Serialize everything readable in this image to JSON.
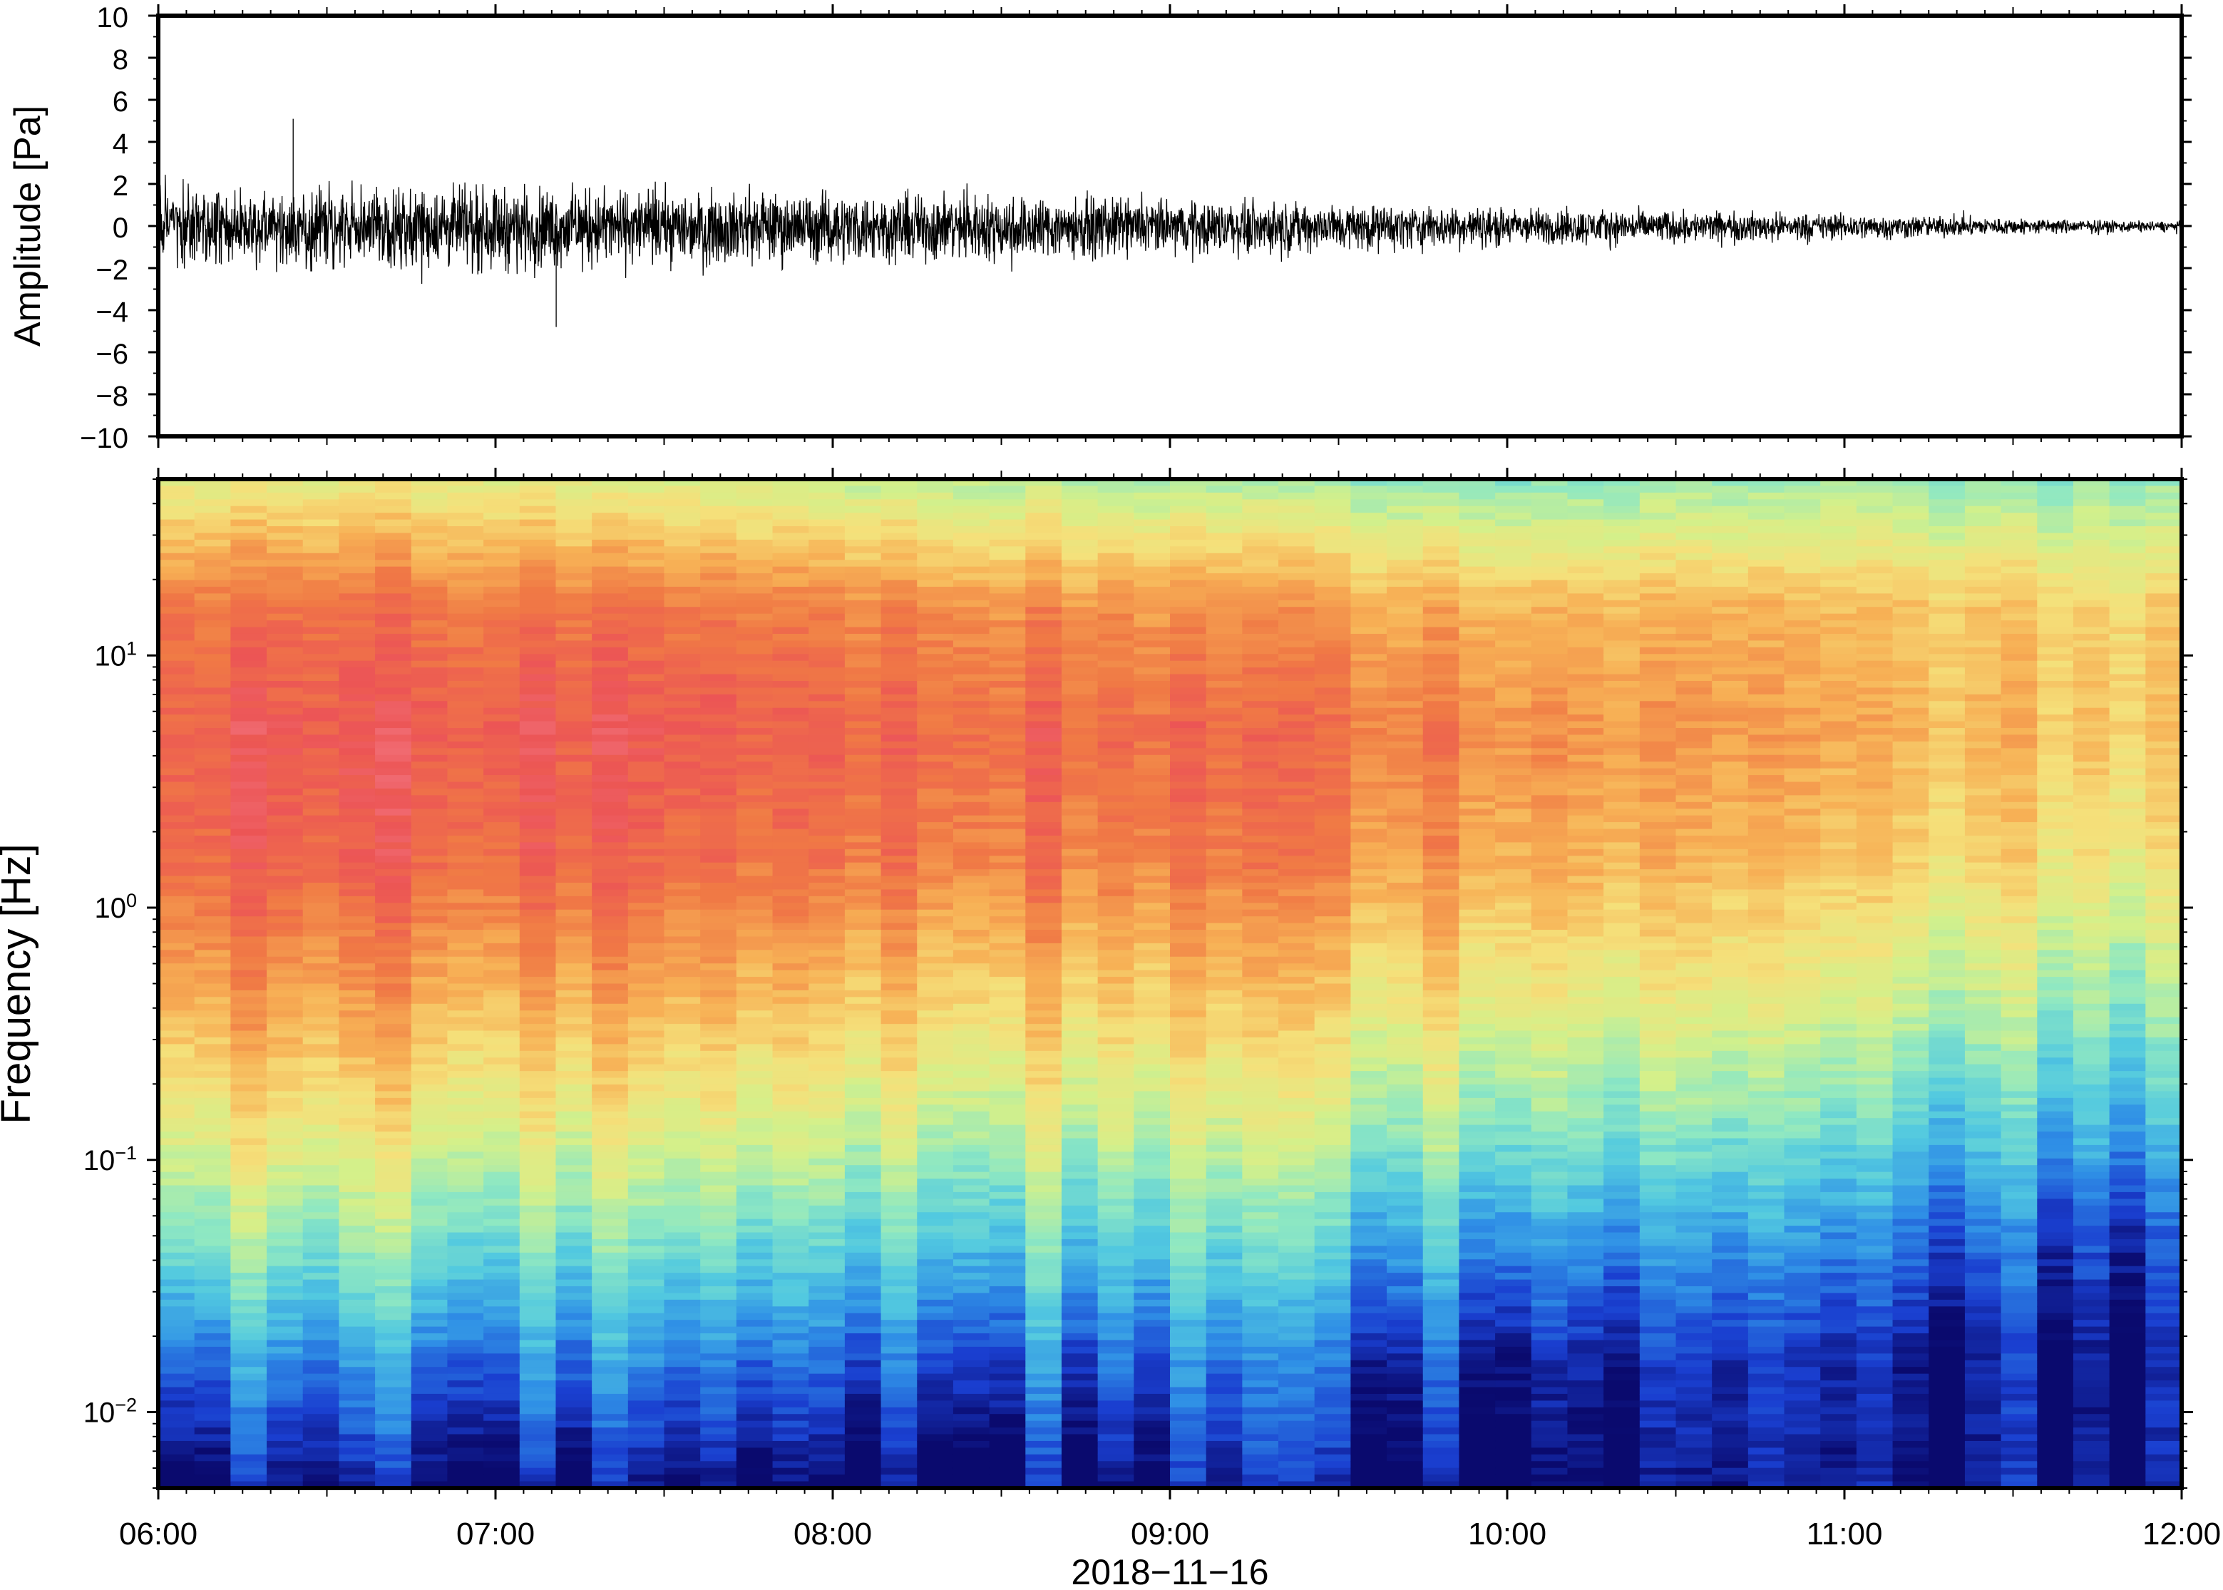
{
  "chart_data": [
    {
      "type": "line",
      "title": "",
      "xlabel": "",
      "ylabel": "Amplitude [Pa]",
      "x_ticks": [
        "06:00",
        "07:00",
        "08:00",
        "09:00",
        "10:00",
        "11:00",
        "12:00"
      ],
      "y_ticks": [
        "10",
        "8",
        "6",
        "4",
        "2",
        "0",
        "−2",
        "−4",
        "−6",
        "−8",
        "−10"
      ],
      "xlim": [
        "2018-11-16 06:00",
        "2018-11-16 12:00"
      ],
      "ylim": [
        -10,
        10
      ],
      "grid": false,
      "series": [
        {
          "x": [
            "06:00",
            "06:30",
            "07:00",
            "07:30",
            "08:00",
            "08:30",
            "09:00",
            "09:30",
            "10:00",
            "10:30",
            "11:00",
            "11:30",
            "12:00"
          ],
          "envelope_max": [
            2.5,
            2.5,
            2.6,
            2.3,
            2.2,
            2.1,
            1.7,
            1.5,
            1.2,
            1.0,
            0.8,
            0.5,
            0.3
          ],
          "envelope_min": [
            -2.8,
            -2.7,
            -3.0,
            -2.6,
            -2.5,
            -2.4,
            -2.0,
            -1.7,
            -1.4,
            -1.2,
            -1.0,
            -0.6,
            -0.4
          ],
          "peak_max": 5.1,
          "peak_min": -4.8
        }
      ]
    },
    {
      "type": "heatmap",
      "title": "",
      "xlabel": "2018−11−16",
      "ylabel": "Frequency [Hz]",
      "x_ticks": [
        "06:00",
        "07:00",
        "08:00",
        "09:00",
        "10:00",
        "11:00",
        "12:00"
      ],
      "y_ticks": [
        {
          "base": "10",
          "exp": "1"
        },
        {
          "base": "10",
          "exp": "0"
        },
        {
          "base": "10",
          "exp": "−1"
        },
        {
          "base": "10",
          "exp": "−2"
        }
      ],
      "xlim": [
        "2018-11-16 06:00",
        "2018-11-16 12:00"
      ],
      "ylim": [
        0.005,
        50
      ],
      "y_scale": "log",
      "colormap": [
        "#0a0a6e",
        "#1a3fd0",
        "#2f8fe6",
        "#52c9e0",
        "#8fe8c2",
        "#d4f08a",
        "#f5e07a",
        "#f7b055",
        "#f07a45",
        "#ec5555",
        "#f47d8a"
      ],
      "relative_power": [
        [
          0.02,
          0.2,
          0.42,
          0.6,
          0.75,
          0.86,
          0.88,
          0.82,
          0.55
        ],
        [
          0.02,
          0.2,
          0.4,
          0.58,
          0.73,
          0.86,
          0.9,
          0.82,
          0.55
        ],
        [
          0.02,
          0.19,
          0.38,
          0.56,
          0.71,
          0.84,
          0.88,
          0.8,
          0.5
        ],
        [
          0.02,
          0.16,
          0.34,
          0.52,
          0.66,
          0.8,
          0.84,
          0.75,
          0.45
        ],
        [
          0.0,
          0.08,
          0.26,
          0.45,
          0.6,
          0.73,
          0.78,
          0.7,
          0.4
        ],
        [
          0.0,
          0.03,
          0.18,
          0.36,
          0.52,
          0.64,
          0.7,
          0.66,
          0.42
        ],
        [
          0.0,
          0.0,
          0.08,
          0.26,
          0.42,
          0.56,
          0.64,
          0.62,
          0.4
        ]
      ]
    }
  ]
}
